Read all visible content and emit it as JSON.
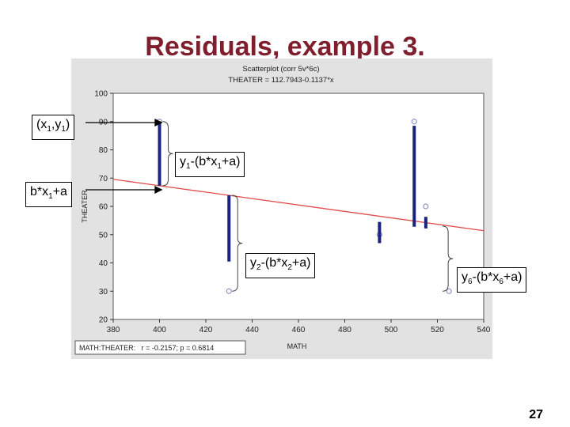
{
  "slide": {
    "title": "Residuals, example 3.",
    "page_number": "27"
  },
  "chart_data": {
    "type": "scatter",
    "title": "Scatterplot (corr 5v*6c)",
    "subtitle": "THEATER = 112.7943-0.1137*x",
    "xlabel": "MATH",
    "ylabel": "THEATER",
    "xlim": [
      380,
      540
    ],
    "ylim": [
      20,
      100
    ],
    "x_ticks": [
      380,
      400,
      420,
      440,
      460,
      480,
      500,
      520,
      540
    ],
    "y_ticks": [
      20,
      30,
      40,
      50,
      60,
      70,
      80,
      90,
      100
    ],
    "grid": false,
    "points": [
      {
        "x": 400,
        "y": 90
      },
      {
        "x": 430,
        "y": 30
      },
      {
        "x": 495,
        "y": 50
      },
      {
        "x": 510,
        "y": 90
      },
      {
        "x": 515,
        "y": 60
      },
      {
        "x": 525,
        "y": 30
      }
    ],
    "regression": {
      "intercept": 112.7943,
      "slope": -0.1137
    },
    "stats_text": "MATH:THEATER:   r = -0.2157; p = 0.6814",
    "residual_bars": [
      {
        "x": 400,
        "from": 90,
        "to": 67.3
      },
      {
        "x": 430,
        "from": 63.9,
        "to": 40.5
      },
      {
        "x": 495,
        "from": 54.5,
        "to": 47
      },
      {
        "x": 510,
        "from": 88.5,
        "to": 52.8
      },
      {
        "x": 515,
        "from": 56.3,
        "to": 52.2
      }
    ],
    "colors": {
      "plot_bg": "#ffffff",
      "frame_bg": "#e2e2e2",
      "point": "#8a96c8",
      "regression": "#e24c4c",
      "residual": "#1a237e",
      "arrow": "#000000",
      "bracket": "#444444"
    }
  },
  "annotations": {
    "point1_label": {
      "pre": "(x",
      "s1": "1",
      "mid": ",y",
      "s2": "1",
      "post": ")"
    },
    "fitted1_label": {
      "pre": "b*x",
      "s1": "1",
      "post": "+a"
    },
    "residual1": {
      "pre": "y",
      "s1": "1",
      "mid": "-(b*x",
      "s2": "1",
      "post": "+a)"
    },
    "residual2": {
      "pre": "y",
      "s1": "2",
      "mid": "-(b*x",
      "s2": "2",
      "post": "+a)"
    },
    "residual6": {
      "pre": "y",
      "s1": "6",
      "mid": "-(b*x",
      "s2": "6",
      "post": "+a)"
    }
  }
}
